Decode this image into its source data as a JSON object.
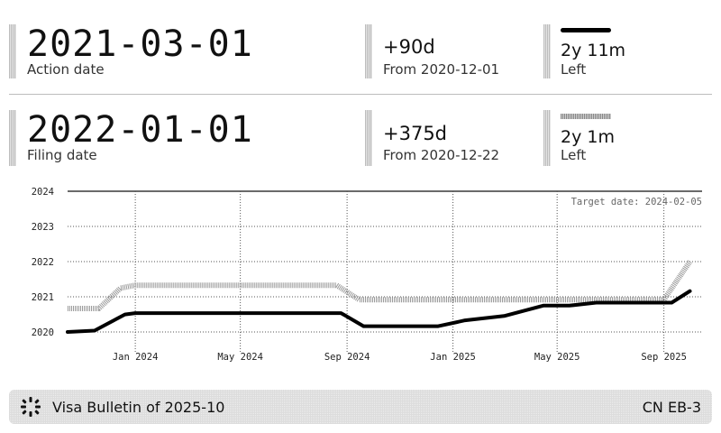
{
  "action": {
    "date": "2021-03-01",
    "label": "Action date",
    "delta": "+90d",
    "from": "From 2020-12-01",
    "left": "2y 11m",
    "left_label": "Left"
  },
  "filing": {
    "date": "2022-01-01",
    "label": "Filing date",
    "delta": "+375d",
    "from": "From 2020-12-22",
    "left": "2y 1m",
    "left_label": "Left"
  },
  "footer": {
    "bulletin": "Visa Bulletin of 2025-10",
    "category": "CN EB-3",
    "logo_icon": "sparkle-logo-icon"
  },
  "chart_data": {
    "type": "line",
    "annotation": "Target date: 2024-02-05",
    "ylim": [
      2020,
      2024
    ],
    "y_ticks": [
      "2020",
      "2021",
      "2022",
      "2023",
      "2024"
    ],
    "x_ticks": [
      "Jan 2024",
      "May 2024",
      "Sep 2024",
      "Jan 2025",
      "May 2025",
      "Sep 2025"
    ],
    "x_tick_dates": [
      "2024-01-01",
      "2024-05-01",
      "2024-09-01",
      "2025-01-01",
      "2025-05-01",
      "2025-09-01"
    ],
    "xlim": [
      "2023-10-15",
      "2025-10-15"
    ],
    "grid": true,
    "series": [
      {
        "style": "dotted",
        "color": "#9a9a9a",
        "points": [
          [
            "2023-10-15",
            "2020-09-01"
          ],
          [
            "2023-11-20",
            "2020-09-01"
          ],
          [
            "2023-12-15",
            "2021-04-01"
          ],
          [
            "2024-01-01",
            "2021-05-01"
          ],
          [
            "2024-08-20",
            "2021-05-01"
          ],
          [
            "2024-09-15",
            "2020-12-01"
          ],
          [
            "2025-09-01",
            "2020-12-01"
          ],
          [
            "2025-10-01",
            "2022-01-01"
          ]
        ]
      },
      {
        "style": "solid",
        "color": "#000000",
        "points": [
          [
            "2023-10-15",
            "2020-01-01"
          ],
          [
            "2023-11-15",
            "2020-01-15"
          ],
          [
            "2023-12-20",
            "2020-07-01"
          ],
          [
            "2024-01-01",
            "2020-07-15"
          ],
          [
            "2024-08-25",
            "2020-07-15"
          ],
          [
            "2024-09-20",
            "2020-03-01"
          ],
          [
            "2024-12-15",
            "2020-03-01"
          ],
          [
            "2025-01-15",
            "2020-05-01"
          ],
          [
            "2025-03-01",
            "2020-06-15"
          ],
          [
            "2025-04-15",
            "2020-10-01"
          ],
          [
            "2025-05-15",
            "2020-10-01"
          ],
          [
            "2025-06-15",
            "2020-11-01"
          ],
          [
            "2025-08-20",
            "2020-11-01"
          ],
          [
            "2025-09-10",
            "2020-11-01"
          ],
          [
            "2025-10-01",
            "2021-03-01"
          ]
        ]
      }
    ]
  }
}
